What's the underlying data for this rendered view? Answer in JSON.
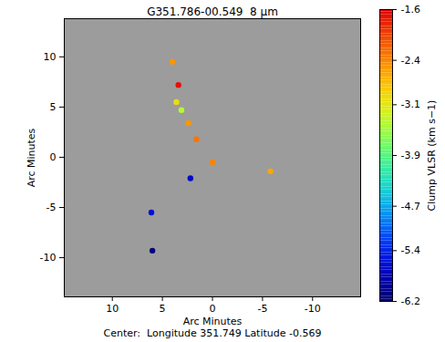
{
  "chart_data": {
    "type": "scatter",
    "title": "G351.786-00.549  8 μm",
    "x_label": "Arc Minutes",
    "y_label": "Arc Minutes",
    "caption": "Center:  Longitude 351.749 Latitude -0.569",
    "x": [
      4.0,
      3.4,
      3.6,
      3.1,
      2.4,
      1.6,
      0.0,
      2.2,
      6.1,
      6.0,
      -5.8
    ],
    "y": [
      9.5,
      7.2,
      5.5,
      4.7,
      3.4,
      1.8,
      -0.5,
      -2.1,
      -5.5,
      -9.3,
      -1.4
    ],
    "clump_vlsr": [
      -2.5,
      -1.7,
      -3.0,
      -3.4,
      -2.5,
      -2.3,
      -2.4,
      -5.7,
      -5.6,
      -6.1,
      -2.6
    ],
    "xlim": [
      14.8,
      -14.8
    ],
    "ylim": [
      -13.9,
      13.8
    ],
    "xticks": [
      10,
      5,
      0,
      -5,
      -10
    ],
    "yticks": [
      -10,
      -5,
      0,
      5,
      10
    ],
    "marker": "circle",
    "colorbar": {
      "label": "Clump VLSR (km s−1)",
      "range": [
        -6.2,
        -1.6
      ],
      "ticks": [
        -1.6,
        -2.4,
        -3.1,
        -3.9,
        -4.7,
        -5.4,
        -6.2
      ]
    }
  }
}
